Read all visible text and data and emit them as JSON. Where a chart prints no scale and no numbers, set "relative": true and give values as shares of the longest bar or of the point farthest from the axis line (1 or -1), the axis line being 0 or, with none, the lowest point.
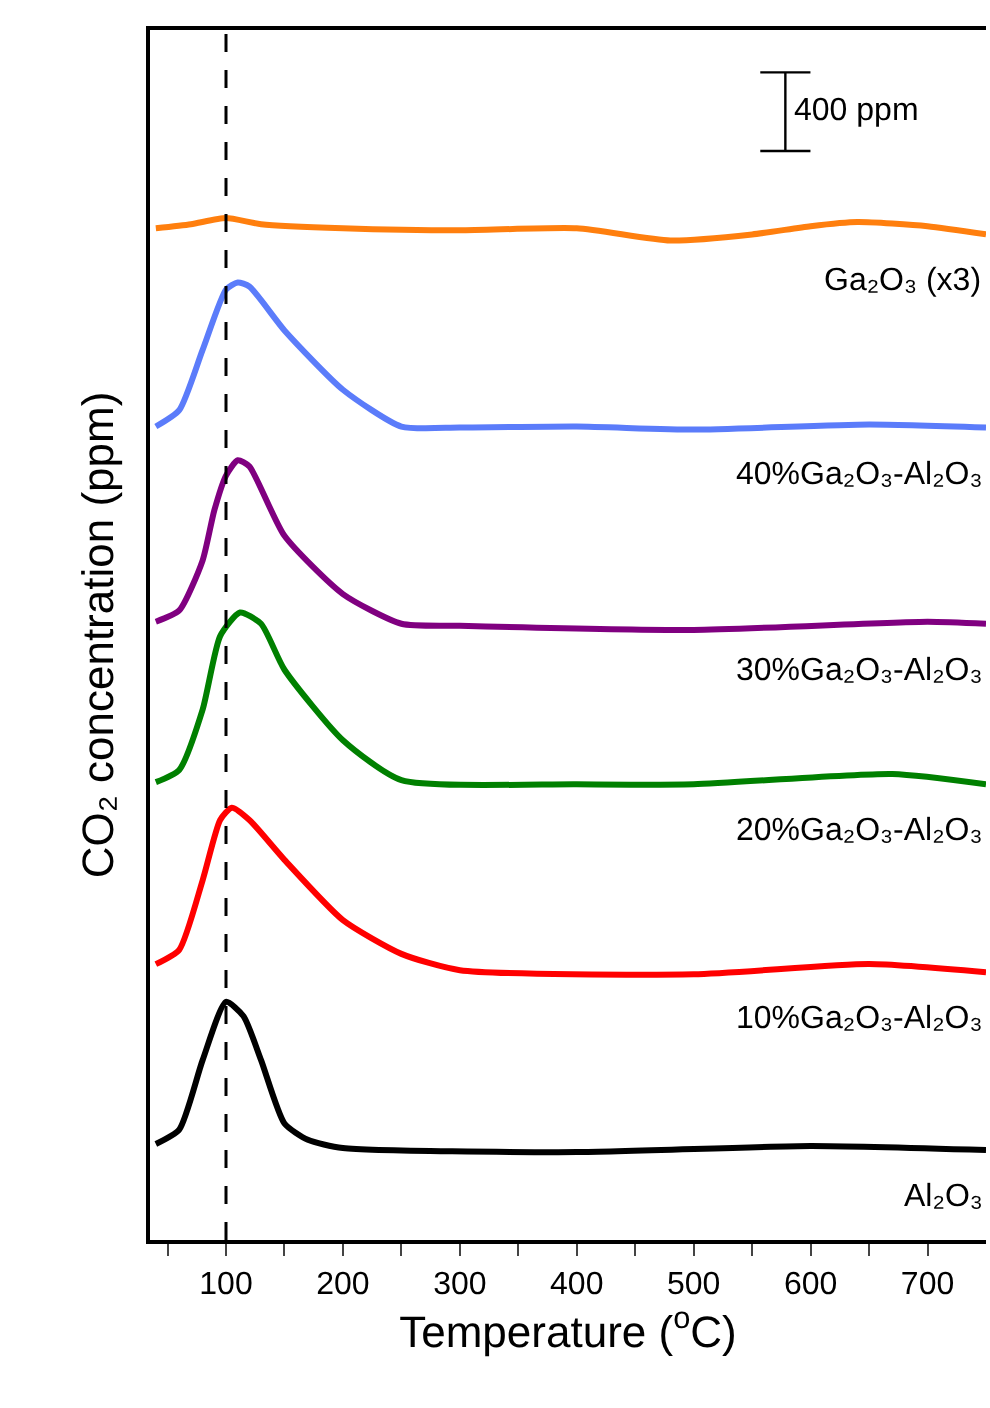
{
  "chart_data": {
    "type": "line",
    "relative": true,
    "xlabel": "Temperature ($^{o}$C)",
    "ylabel": "CO₂ concentration (ppm)",
    "xlim": [
      35,
      750
    ],
    "xticks": [
      {
        "value": 50,
        "label": null
      },
      100,
      {
        "value": 150,
        "label": null
      },
      200,
      {
        "value": 250,
        "label": null
      },
      300,
      {
        "value": 350,
        "label": null
      },
      400,
      {
        "value": 450,
        "label": null
      },
      500,
      {
        "value": 550,
        "label": null
      },
      600,
      {
        "value": 650,
        "label": null
      },
      700
    ],
    "legend": false,
    "marker": "none",
    "line_style": "solid",
    "tick_labels": "x",
    "ref_lines": [
      {
        "axis": "x",
        "value": 100,
        "color": "#000000",
        "line_style": "dashed"
      }
    ],
    "annotations": [
      "400 ppm"
    ],
    "series": [
      {
        "name": "Al₂O₃",
        "color": "#000000",
        "x": [
          40,
          60,
          80,
          100,
          115,
          130,
          150,
          170,
          200,
          400,
          600,
          750
        ],
        "values": [
          0.094,
          0.108,
          0.176,
          0.233,
          0.219,
          0.176,
          0.114,
          0.098,
          0.09,
          0.086,
          0.092,
          0.088
        ]
      },
      {
        "name": "10%Ga₂O₃-Al₂O₃",
        "color": "#ff0000",
        "x": [
          40,
          60,
          80,
          95,
          105,
          120,
          150,
          200,
          250,
          300,
          500,
          650,
          750
        ],
        "values": [
          0.27,
          0.284,
          0.352,
          0.411,
          0.423,
          0.411,
          0.372,
          0.313,
          0.28,
          0.264,
          0.26,
          0.27,
          0.262
        ]
      },
      {
        "name": "20%Ga₂O₃-Al₂O₃",
        "color": "#008000",
        "x": [
          40,
          60,
          80,
          95,
          112,
          130,
          150,
          200,
          250,
          400,
          500,
          670,
          750
        ],
        "values": [
          0.448,
          0.46,
          0.519,
          0.591,
          0.614,
          0.603,
          0.558,
          0.489,
          0.45,
          0.446,
          0.446,
          0.456,
          0.446
        ]
      },
      {
        "name": "30%Ga₂O₃-Al₂O₃",
        "color": "#800080",
        "x": [
          40,
          60,
          80,
          90,
          100,
          110,
          120,
          150,
          200,
          250,
          300,
          500,
          700,
          750
        ],
        "values": [
          0.605,
          0.616,
          0.665,
          0.714,
          0.748,
          0.763,
          0.757,
          0.689,
          0.632,
          0.603,
          0.601,
          0.597,
          0.605,
          0.603
        ]
      },
      {
        "name": "40%Ga₂O₃-Al₂O₃",
        "color": "#5b7cfa",
        "x": [
          40,
          60,
          80,
          100,
          110,
          120,
          150,
          200,
          250,
          300,
          400,
          500,
          650,
          750
        ],
        "values": [
          0.796,
          0.812,
          0.871,
          0.93,
          0.937,
          0.933,
          0.89,
          0.832,
          0.796,
          0.795,
          0.796,
          0.793,
          0.798,
          0.795
        ]
      },
      {
        "name": "Ga₂O₃ (x3)",
        "color": "#ff7f0e",
        "x": [
          40,
          70,
          100,
          130,
          200,
          300,
          400,
          480,
          550,
          600,
          640,
          700,
          750
        ],
        "values": [
          0.99,
          0.994,
          1,
          0.994,
          0.99,
          0.988,
          0.99,
          0.978,
          0.984,
          0.992,
          0.996,
          0.992,
          0.984
        ]
      }
    ]
  }
}
